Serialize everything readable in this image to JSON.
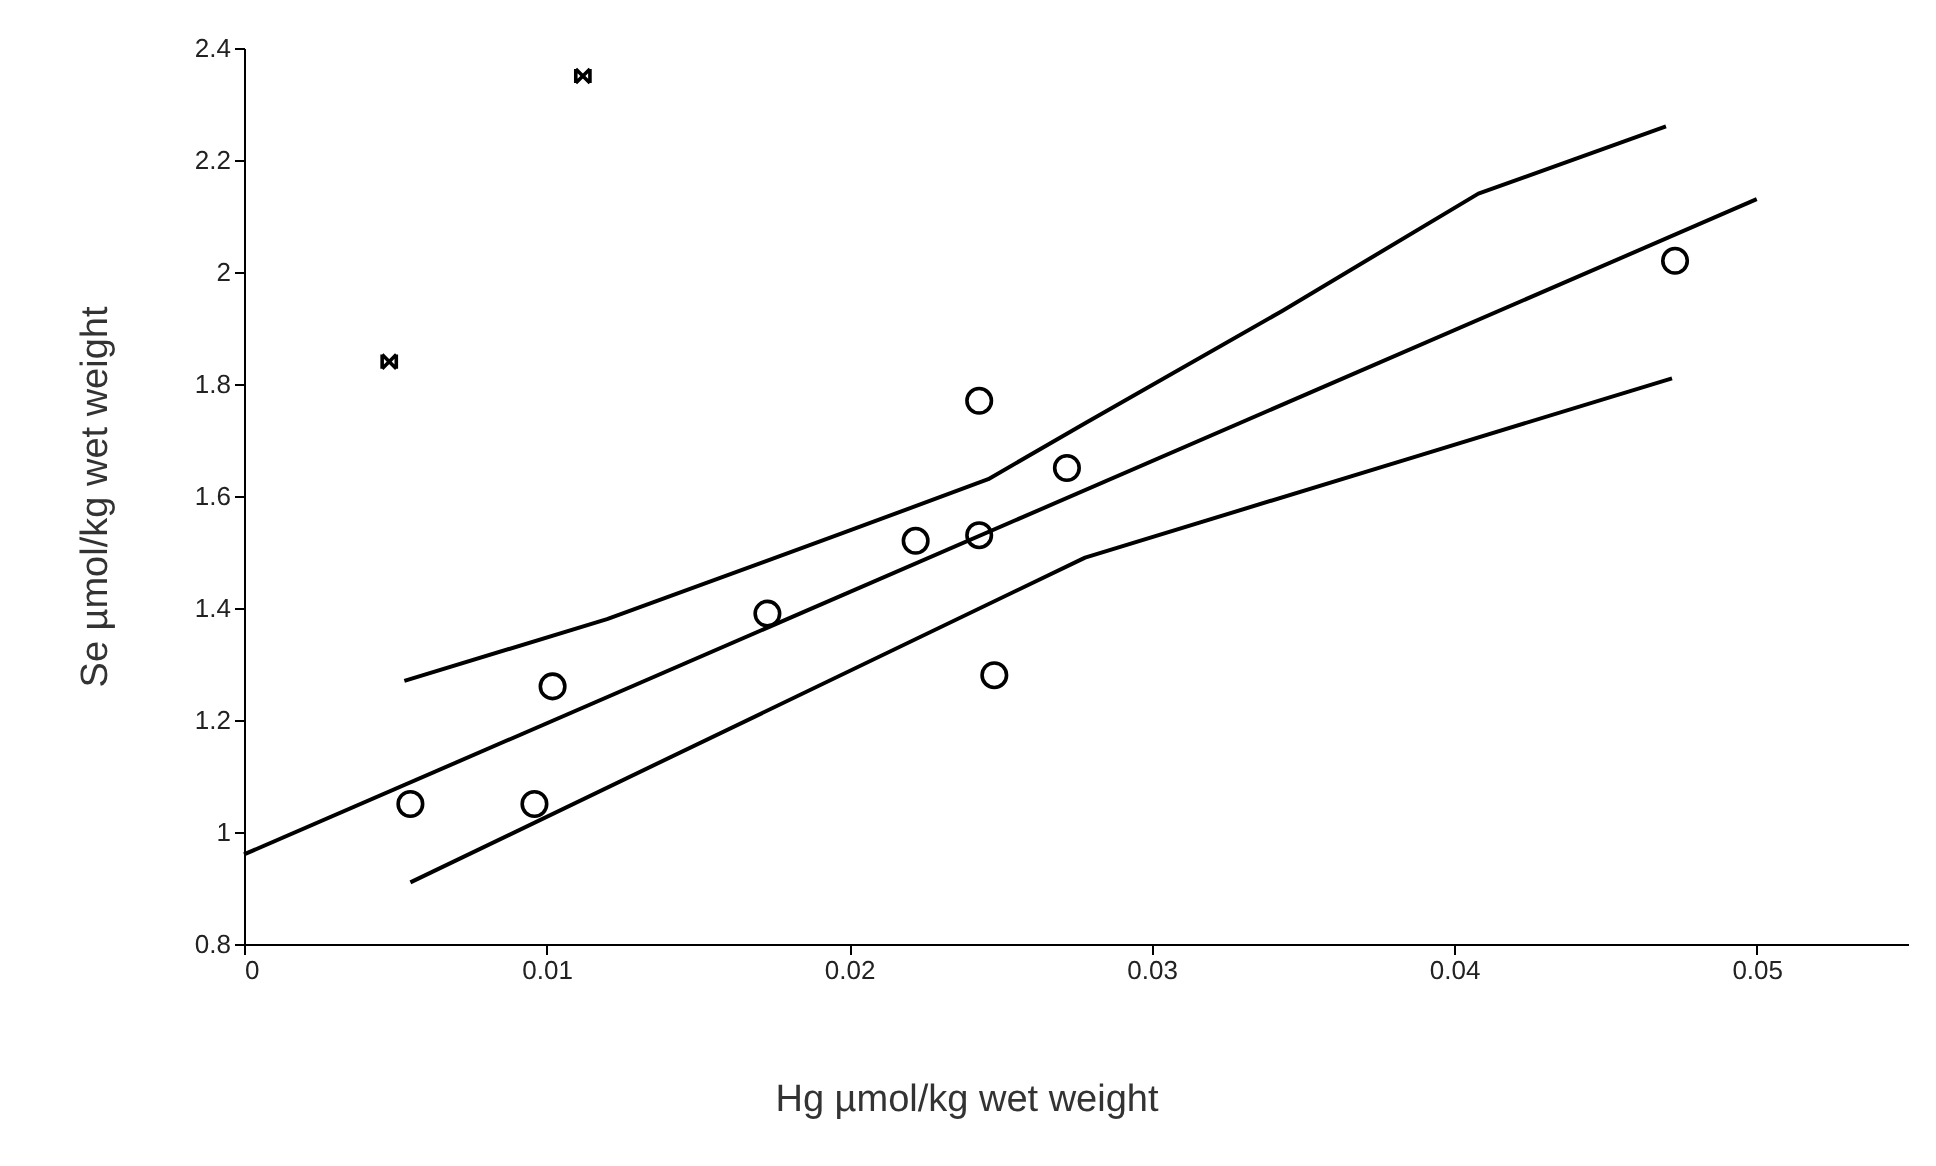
{
  "chart_data": {
    "type": "scatter",
    "xlabel": "Hg µmol/kg wet weight",
    "ylabel": "Se µmol/kg wet weight",
    "xlim": [
      0,
      0.055
    ],
    "ylim": [
      0.8,
      2.4
    ],
    "xticks": [
      0,
      0.01,
      0.02,
      0.03,
      0.04,
      0.05
    ],
    "yticks": [
      0.8,
      1,
      1.2,
      1.4,
      1.6,
      1.8,
      2,
      2.2,
      2.4
    ],
    "grid": false,
    "series": [
      {
        "color": "#000000",
        "marker": "circle",
        "x": [
          0.0055,
          0.0102,
          0.0096,
          0.0173,
          0.0222,
          0.0243,
          0.0243,
          0.0248,
          0.0272,
          0.0473
        ],
        "values": [
          1.05,
          1.26,
          1.05,
          1.39,
          1.52,
          1.53,
          1.77,
          1.28,
          1.65,
          2.02
        ]
      },
      {
        "color": "#000000",
        "marker": "cross",
        "x": [
          0.0048,
          0.0112
        ],
        "values": [
          1.84,
          2.35
        ]
      },
      {
        "type": "line",
        "color": "#000000",
        "marker": "none",
        "x": [
          0,
          0.05
        ],
        "values": [
          0.96,
          2.13
        ]
      },
      {
        "type": "line",
        "color": "#000000",
        "marker": "none",
        "x": [
          0.0053,
          0.012,
          0.0196,
          0.0246,
          0.0278,
          0.0343,
          0.0408,
          0.047
        ],
        "values": [
          1.27,
          1.38,
          1.53,
          1.63,
          1.73,
          1.93,
          2.14,
          2.26
        ]
      },
      {
        "type": "line",
        "color": "#000000",
        "marker": "none",
        "x": [
          0.0055,
          0.0278,
          0.0387,
          0.0472
        ],
        "values": [
          0.91,
          1.49,
          1.67,
          1.81
        ]
      }
    ]
  }
}
